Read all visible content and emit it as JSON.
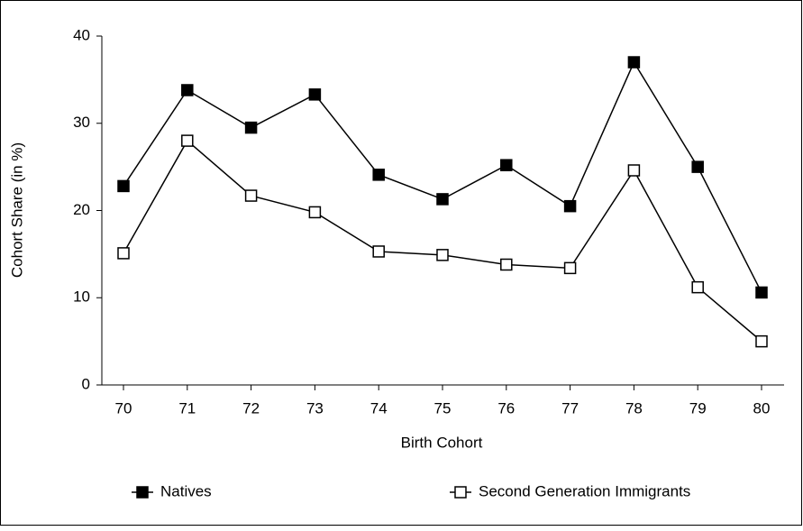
{
  "chart_data": {
    "type": "line",
    "x_label": "Birth Cohort",
    "y_label": "Cohort Share (in %)",
    "categories": [
      "70",
      "71",
      "72",
      "73",
      "74",
      "75",
      "76",
      "77",
      "78",
      "79",
      "80"
    ],
    "series": [
      {
        "name": "Natives",
        "color": "#000000",
        "marker": "filled-square",
        "values": [
          22.8,
          33.8,
          29.5,
          33.3,
          24.1,
          21.3,
          25.2,
          20.5,
          37.0,
          25.0,
          10.6
        ]
      },
      {
        "name": "Second Generation Immigrants",
        "color": "#000000",
        "marker": "open-square",
        "values": [
          15.1,
          28.0,
          21.7,
          19.8,
          15.3,
          14.9,
          13.8,
          13.4,
          24.6,
          11.2,
          5.0
        ]
      }
    ],
    "ylim": [
      0,
      40
    ],
    "yticks": [
      0,
      10,
      20,
      30,
      40
    ],
    "grid": false
  }
}
